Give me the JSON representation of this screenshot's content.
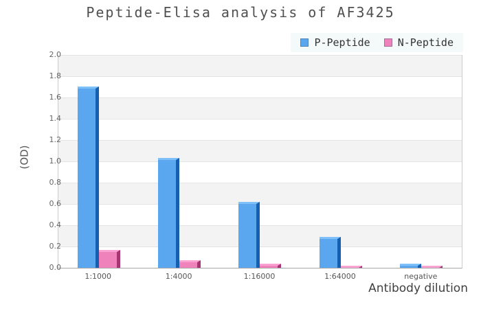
{
  "title": "Peptide-Elisa analysis of AF3425",
  "chart_data": {
    "type": "bar",
    "title": "Peptide-Elisa analysis of AF3425",
    "xlabel": "Antibody dilution",
    "ylabel": "(OD)",
    "categories": [
      "1:1000",
      "1:4000",
      "1:16000",
      "1:64000",
      "negative"
    ],
    "series": [
      {
        "name": "P-Peptide",
        "values": [
          1.7,
          1.03,
          0.62,
          0.29,
          0.04
        ],
        "color": "#5aa7f0",
        "color_top": "#7fc0f8",
        "color_side": "#1660b2"
      },
      {
        "name": "N-Peptide",
        "values": [
          0.17,
          0.07,
          0.04,
          0.02,
          0.02
        ],
        "color": "#ef82bb",
        "color_top": "#f9a1d0",
        "color_side": "#a83573"
      }
    ],
    "ylim": [
      0,
      2
    ],
    "ytick_step": 0.2,
    "yticks": [
      "2.0",
      "1.8",
      "1.6",
      "1.4",
      "1.2",
      "1.0",
      "0.8",
      "0.6",
      "0.4",
      "0.2",
      "0.0"
    ],
    "grid": "horizontal gridlines with alternating gray/white bands",
    "legend_position": "top-right",
    "bar_style": "3d-shaded"
  },
  "colors": {
    "background": "#ffffff",
    "band_gray": "#f3f3f3",
    "gridline": "#e4e4e4",
    "axis_line": "#a6a6a6",
    "legend_background": "#f4fafa",
    "title_text": "#4f4f4f",
    "tick_text": "#666666"
  }
}
